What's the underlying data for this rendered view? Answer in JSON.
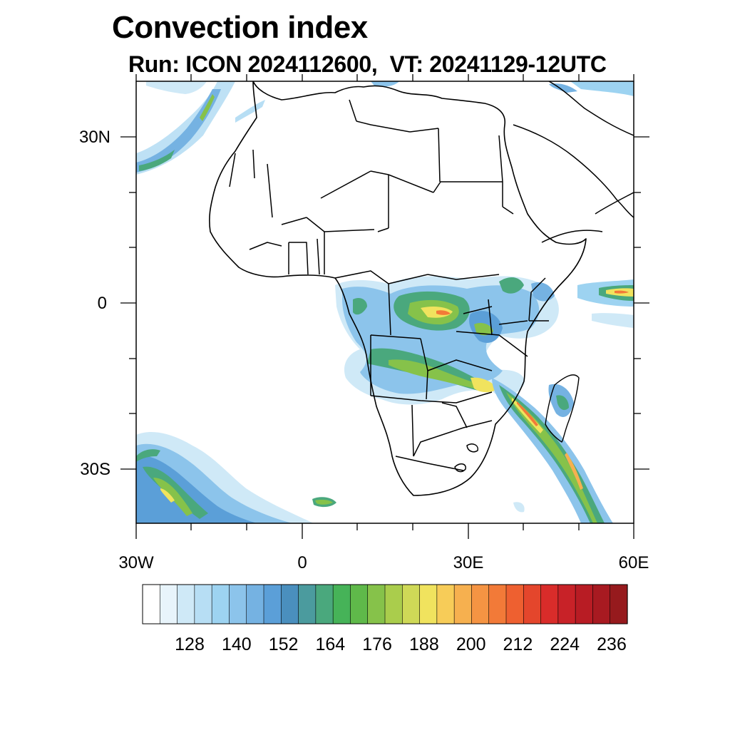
{
  "title": "Convection index",
  "subtitle": "Run: ICON 2024112600,  VT: 20241129-12UTC",
  "axes": {
    "x_ticks": [
      "30W",
      "0",
      "30E",
      "60E"
    ],
    "y_ticks": [
      "30N",
      "0",
      "30S"
    ]
  },
  "colorbar": {
    "labels": [
      "128",
      "140",
      "152",
      "164",
      "176",
      "188",
      "200",
      "212",
      "224",
      "236"
    ],
    "colors": [
      "#ffffff",
      "#e8f4fb",
      "#cfe9f7",
      "#b7def4",
      "#9dd3f1",
      "#8cc4eb",
      "#75b2e2",
      "#5b9fd8",
      "#4a8fbe",
      "#4b9b9e",
      "#4aa87d",
      "#46b358",
      "#5fb94a",
      "#86c24a",
      "#aacd4c",
      "#cfd957",
      "#f0e35e",
      "#f7cc58",
      "#f6b04f",
      "#f59443",
      "#f27a38",
      "#ee6030",
      "#e4462c",
      "#d92c2a",
      "#c82228",
      "#b81c24",
      "#a81a21",
      "#961a1d"
    ]
  },
  "colors": {
    "land_outline": "#000000",
    "frame": "#000000"
  }
}
